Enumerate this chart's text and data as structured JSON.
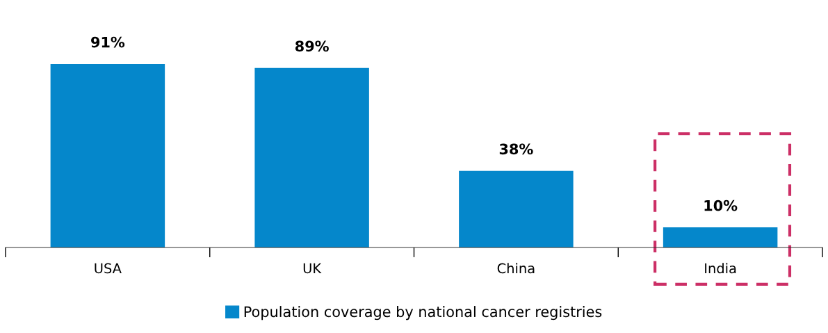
{
  "chart_data": {
    "type": "bar",
    "categories": [
      "USA",
      "UK",
      "China",
      "India"
    ],
    "series": [
      {
        "name": "Population coverage by national cancer registries",
        "color": "#0587cb",
        "values": [
          91,
          89,
          38,
          10
        ],
        "value_labels": [
          "91%",
          "89%",
          "38%",
          "10%"
        ]
      }
    ],
    "legend": "bottom",
    "grid": false,
    "tick_labels": "x"
  }
}
